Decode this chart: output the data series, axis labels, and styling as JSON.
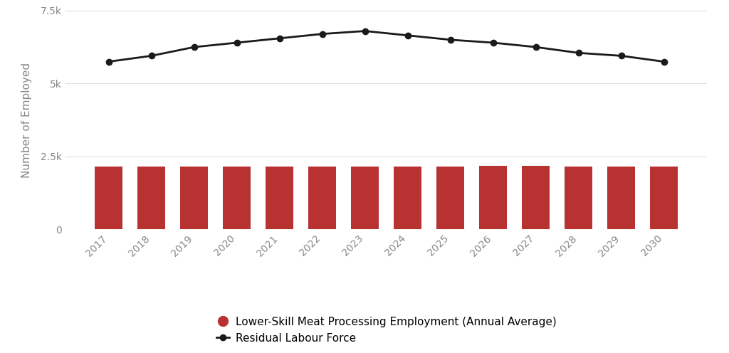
{
  "years": [
    2017,
    2018,
    2019,
    2020,
    2021,
    2022,
    2023,
    2024,
    2025,
    2026,
    2027,
    2028,
    2029,
    2030
  ],
  "bar_values": [
    2150,
    2150,
    2150,
    2150,
    2150,
    2150,
    2150,
    2150,
    2150,
    2180,
    2180,
    2150,
    2150,
    2150
  ],
  "line_values": [
    5750,
    5950,
    6250,
    6400,
    6550,
    6700,
    6800,
    6650,
    6500,
    6400,
    6250,
    6050,
    5950,
    5750
  ],
  "bar_color": "#b83232",
  "line_color": "#1a1a1a",
  "ylabel": "Number of Employed",
  "ylim": [
    0,
    7500
  ],
  "yticks": [
    0,
    2500,
    5000,
    7500
  ],
  "ytick_labels": [
    "0",
    "2.5k",
    "5k",
    "7.5k"
  ],
  "legend_bar_label": "Lower-Skill Meat Processing Employment (Annual Average)",
  "legend_line_label": "Residual Labour Force",
  "background_color": "#ffffff",
  "label_fontsize": 11,
  "tick_fontsize": 10,
  "legend_fontsize": 11
}
